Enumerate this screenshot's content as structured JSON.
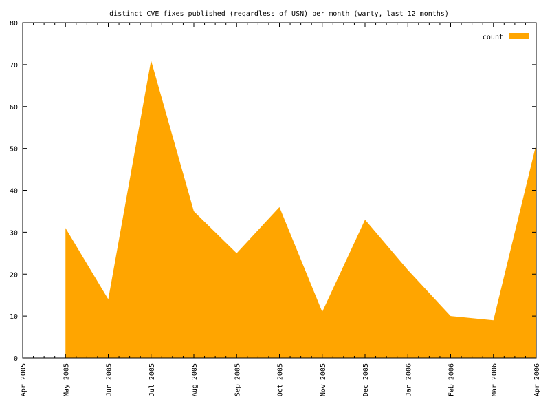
{
  "chart_data": {
    "type": "area",
    "title": "distinct CVE fixes published (regardless of USN) per month (warty, last 12 months)",
    "xlabel": "",
    "ylabel": "",
    "x_ticks": [
      "Apr 2005",
      "May 2005",
      "Jun 2005",
      "Jul 2005",
      "Aug 2005",
      "Sep 2005",
      "Oct 2005",
      "Nov 2005",
      "Dec 2005",
      "Jan 2006",
      "Feb 2006",
      "Mar 2006",
      "Apr 2006"
    ],
    "x_range": [
      "2005-04-01",
      "2006-04-01"
    ],
    "y_ticks": [
      0,
      10,
      20,
      30,
      40,
      50,
      60,
      70,
      80
    ],
    "ylim": [
      0,
      80
    ],
    "grid": false,
    "legend_position": "top-right",
    "series": [
      {
        "name": "count",
        "color": "#ffa500",
        "points": [
          {
            "x": "2005-05-01",
            "y": 31
          },
          {
            "x": "2005-06-01",
            "y": 14
          },
          {
            "x": "2005-07-01",
            "y": 71
          },
          {
            "x": "2005-08-01",
            "y": 35
          },
          {
            "x": "2005-09-01",
            "y": 25
          },
          {
            "x": "2005-10-01",
            "y": 36
          },
          {
            "x": "2005-11-01",
            "y": 11
          },
          {
            "x": "2005-12-01",
            "y": 33
          },
          {
            "x": "2006-01-01",
            "y": 21
          },
          {
            "x": "2006-02-01",
            "y": 10
          },
          {
            "x": "2006-03-01",
            "y": 9
          },
          {
            "x": "2006-04-01",
            "y": 51
          }
        ]
      }
    ]
  }
}
